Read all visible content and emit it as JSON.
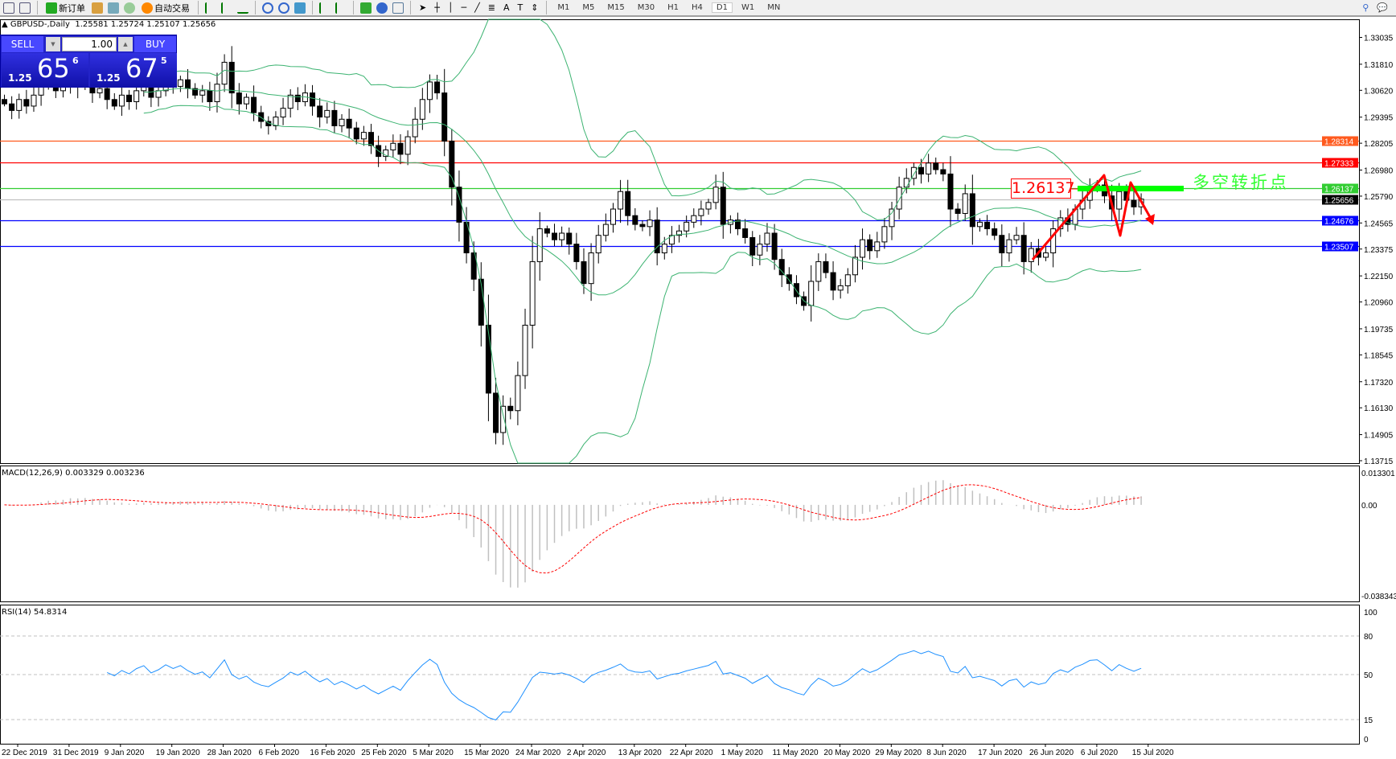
{
  "toolbar": {
    "new_order": "新订单",
    "auto_trading": "自动交易",
    "timeframes": [
      "M1",
      "M5",
      "M15",
      "M30",
      "H1",
      "H4",
      "D1",
      "W1",
      "MN"
    ],
    "active_timeframe": "D1"
  },
  "chart": {
    "title": "GBPUSD-,Daily",
    "ohlc_text": "1.25581 1.25724 1.25107 1.25656"
  },
  "trade_panel": {
    "sell_label": "SELL",
    "buy_label": "BUY",
    "lot": "1.00",
    "sell": {
      "prefix": "1.25",
      "big": "65",
      "sup": "6"
    },
    "buy": {
      "prefix": "1.25",
      "big": "67",
      "sup": "5"
    }
  },
  "annotations": {
    "level_label": "1.26137",
    "turning_point": "多空转折点"
  },
  "price_axis": [
    "1.33035",
    "1.31810",
    "1.30620",
    "1.29395",
    "1.28205",
    "1.26980",
    "1.25790",
    "1.24565",
    "1.23375",
    "1.22150",
    "1.20960",
    "1.19735",
    "1.18545",
    "1.17320",
    "1.16130",
    "1.14905",
    "1.13715"
  ],
  "levels": [
    {
      "price": "1.28314",
      "color": "#ff5a1e"
    },
    {
      "price": "1.27333",
      "color": "#ff0000"
    },
    {
      "price": "1.26137",
      "color": "#32cd32"
    },
    {
      "price": "1.25656",
      "color": "#000000",
      "line": "#c0c0c0"
    },
    {
      "price": "1.24676",
      "color": "#0000ff"
    },
    {
      "price": "1.23507",
      "color": "#0000ff"
    }
  ],
  "macd": {
    "label": "MACD(12,26,9) 0.003329 0.003236",
    "max": "0.013301",
    "zero": "0.00",
    "min": "-0.038343"
  },
  "rsi": {
    "label": "RSI(14) 54.8314",
    "levels": [
      "100",
      "80",
      "50",
      "15",
      "0"
    ]
  },
  "dates": [
    "22 Dec 2019",
    "31 Dec 2019",
    "9 Jan 2020",
    "19 Jan 2020",
    "28 Jan 2020",
    "6 Feb 2020",
    "16 Feb 2020",
    "25 Feb 2020",
    "5 Mar 2020",
    "15 Mar 2020",
    "24 Mar 2020",
    "2 Apr 2020",
    "13 Apr 2020",
    "22 Apr 2020",
    "1 May 2020",
    "11 May 2020",
    "20 May 2020",
    "29 May 2020",
    "8 Jun 2020",
    "17 Jun 2020",
    "26 Jun 2020",
    "6 Jul 2020",
    "15 Jul 2020"
  ],
  "chart_data": {
    "type": "candlestick",
    "symbol": "GBPUSD-",
    "timeframe": "Daily",
    "ylim": [
      1.13715,
      1.33035
    ],
    "closes": [
      1.3,
      1.297,
      1.302,
      1.299,
      1.304,
      1.31,
      1.312,
      1.306,
      1.309,
      1.315,
      1.308,
      1.311,
      1.305,
      1.307,
      1.302,
      1.299,
      1.304,
      1.301,
      1.306,
      1.309,
      1.303,
      1.306,
      1.311,
      1.308,
      1.311,
      1.307,
      1.304,
      1.306,
      1.301,
      1.309,
      1.319,
      1.305,
      1.3,
      1.303,
      1.296,
      1.292,
      1.29,
      1.294,
      1.298,
      1.304,
      1.301,
      1.305,
      1.299,
      1.294,
      1.297,
      1.29,
      1.293,
      1.289,
      1.284,
      1.287,
      1.281,
      1.276,
      1.279,
      1.282,
      1.277,
      1.285,
      1.293,
      1.302,
      1.31,
      1.305,
      1.283,
      1.262,
      1.246,
      1.232,
      1.22,
      1.199,
      1.168,
      1.15,
      1.162,
      1.16,
      1.176,
      1.199,
      1.228,
      1.243,
      1.241,
      1.238,
      1.241,
      1.236,
      1.228,
      1.218,
      1.232,
      1.24,
      1.245,
      1.252,
      1.26,
      1.249,
      1.245,
      1.244,
      1.247,
      1.232,
      1.236,
      1.24,
      1.242,
      1.246,
      1.249,
      1.252,
      1.255,
      1.262,
      1.245,
      1.247,
      1.243,
      1.239,
      1.231,
      1.236,
      1.241,
      1.229,
      1.222,
      1.218,
      1.212,
      1.208,
      1.219,
      1.228,
      1.223,
      1.215,
      1.217,
      1.222,
      1.23,
      1.238,
      1.233,
      1.237,
      1.244,
      1.252,
      1.262,
      1.266,
      1.271,
      1.268,
      1.273,
      1.27,
      1.268,
      1.252,
      1.25,
      1.259,
      1.244,
      1.246,
      1.243,
      1.24,
      1.232,
      1.238,
      1.24,
      1.228,
      1.234,
      1.23,
      1.232,
      1.243,
      1.248,
      1.245,
      1.252,
      1.256,
      1.262,
      1.263,
      1.258,
      1.252,
      1.26,
      1.256,
      1.253,
      1.25656
    ]
  }
}
